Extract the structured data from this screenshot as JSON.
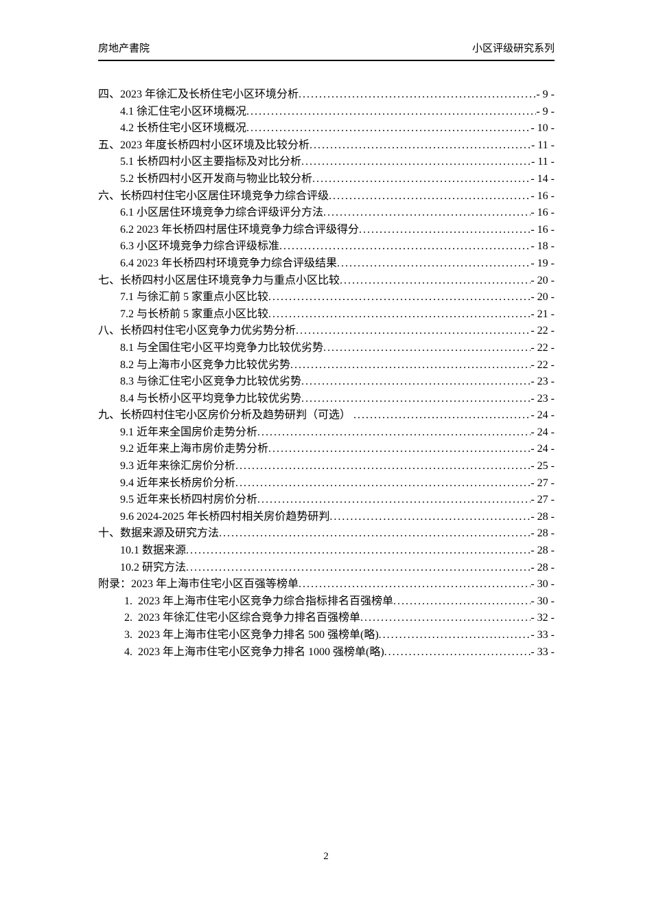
{
  "header": {
    "left": "房地产書院",
    "right": "小区评级研究系列"
  },
  "toc": {
    "leader_dots": "........................................................................................................................................................................................................",
    "entries": [
      {
        "level": 1,
        "text": "四、2023 年徐汇及长桥住宅小区环境分析",
        "page": "- 9 -"
      },
      {
        "level": 2,
        "text": "4.1 徐汇住宅小区环境概况",
        "page": "- 9 -"
      },
      {
        "level": 2,
        "text": "4.2 长桥住宅小区环境概况",
        "page": "- 10 -"
      },
      {
        "level": 1,
        "text": "五、2023 年度长桥四村小区环境及比较分析",
        "page": "- 11 -"
      },
      {
        "level": 2,
        "text": "5.1 长桥四村小区主要指标及对比分析",
        "page": "- 11 -"
      },
      {
        "level": 2,
        "text": "5.2 长桥四村小区开发商与物业比较分析",
        "page": "- 14 -"
      },
      {
        "level": 1,
        "text": "六、长桥四村住宅小区居住环境竞争力综合评级",
        "page": "- 16 -"
      },
      {
        "level": 2,
        "text": "6.1 小区居住环境竞争力综合评级评分方法",
        "page": "- 16 -"
      },
      {
        "level": 2,
        "text": "6.2 2023 年长桥四村居住环境竞争力综合评级得分",
        "page": "- 16 -"
      },
      {
        "level": 2,
        "text": "6.3 小区环境竞争力综合评级标准",
        "page": "- 18 -"
      },
      {
        "level": 2,
        "text": "6.4 2023 年长桥四村环境竞争力综合评级结果",
        "page": "- 19 -"
      },
      {
        "level": 1,
        "text": "七、长桥四村小区居住环境竞争力与重点小区比较",
        "page": "- 20 -"
      },
      {
        "level": 2,
        "text": "7.1 与徐汇前 5 家重点小区比较",
        "page": "- 20 -"
      },
      {
        "level": 2,
        "text": "7.2 与长桥前 5 家重点小区比较",
        "page": "- 21 -"
      },
      {
        "level": 1,
        "text": "八、长桥四村住宅小区竞争力优劣势分析",
        "page": "- 22 -"
      },
      {
        "level": 2,
        "text": "8.1 与全国住宅小区平均竞争力比较优劣势",
        "page": "- 22 -"
      },
      {
        "level": 2,
        "text": "8.2 与上海市小区竞争力比较优劣势",
        "page": "- 22 -"
      },
      {
        "level": 2,
        "text": "8.3 与徐汇住宅小区竞争力比较优劣势",
        "page": "- 23 -"
      },
      {
        "level": 2,
        "text": "8.4 与长桥小区平均竞争力比较优劣势",
        "page": "- 23 -"
      },
      {
        "level": 1,
        "text": "九、长桥四村住宅小区房价分析及趋势研判（可选） ",
        "page": "- 24 -"
      },
      {
        "level": 2,
        "text": "9.1 近年来全国房价走势分析",
        "page": "- 24 -"
      },
      {
        "level": 2,
        "text": "9.2 近年来上海市房价走势分析",
        "page": "- 24 -"
      },
      {
        "level": 2,
        "text": "9.3 近年来徐汇房价分析",
        "page": "- 25 -"
      },
      {
        "level": 2,
        "text": "9.4 近年来长桥房价分析",
        "page": "- 27 -"
      },
      {
        "level": 2,
        "text": "9.5 近年来长桥四村房价分析",
        "page": "- 27 -"
      },
      {
        "level": 2,
        "text": "9.6 2024-2025 年长桥四村相关房价趋势研判",
        "page": "- 28 -"
      },
      {
        "level": 1,
        "text": "十、数据来源及研究方法",
        "page": "- 28 -"
      },
      {
        "level": 2,
        "text": "10.1 数据来源",
        "page": "- 28 -"
      },
      {
        "level": 2,
        "text": "10.2 研究方法",
        "page": "- 28 -"
      },
      {
        "level": 1,
        "text": "附录：2023 年上海市住宅小区百强等榜单",
        "page": "- 30 -"
      },
      {
        "level": 3,
        "text": "1.  2023 年上海市住宅小区竞争力综合指标排名百强榜单",
        "page": "- 30 -"
      },
      {
        "level": 3,
        "text": "2.  2023 年徐汇住宅小区综合竞争力排名百强榜单",
        "page": "- 32 -"
      },
      {
        "level": 3,
        "text": "3.  2023 年上海市住宅小区竞争力排名 500 强榜单(略)",
        "page": "- 33 -"
      },
      {
        "level": 3,
        "text": "4.  2023 年上海市住宅小区竞争力排名 1000 强榜单(略)",
        "page": "- 33 -"
      }
    ]
  },
  "footer": {
    "page_number": "2"
  }
}
